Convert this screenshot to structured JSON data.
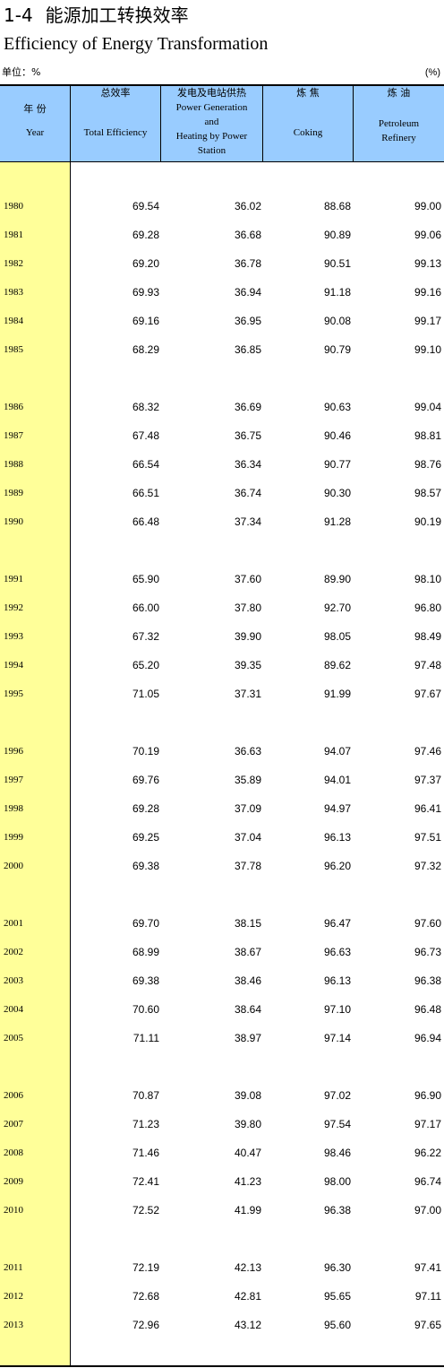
{
  "title": {
    "number": "1-4",
    "cn": "能源加工转换效率",
    "en": "Efficiency of Energy Transformation"
  },
  "unit": {
    "left": "单位：%",
    "right": "(%)"
  },
  "columns": [
    {
      "cn": "年  份",
      "en": [
        "Year"
      ]
    },
    {
      "cn": "总效率",
      "en": [
        "Total Efficiency"
      ]
    },
    {
      "cn": "发电及电站供热",
      "en": [
        "Power Generation",
        "and",
        "Heating by Power",
        "Station"
      ]
    },
    {
      "cn": "炼  焦",
      "en": [
        "Coking"
      ]
    },
    {
      "cn": "炼  油",
      "en": [
        "Petroleum",
        "Refinery"
      ]
    }
  ],
  "rows": [
    {
      "year": "1980",
      "total": "69.54",
      "power": "36.02",
      "coking": "88.68",
      "refinery": "99.00"
    },
    {
      "year": "1981",
      "total": "69.28",
      "power": "36.68",
      "coking": "90.89",
      "refinery": "99.06"
    },
    {
      "year": "1982",
      "total": "69.20",
      "power": "36.78",
      "coking": "90.51",
      "refinery": "99.13"
    },
    {
      "year": "1983",
      "total": "69.93",
      "power": "36.94",
      "coking": "91.18",
      "refinery": "99.16"
    },
    {
      "year": "1984",
      "total": "69.16",
      "power": "36.95",
      "coking": "90.08",
      "refinery": "99.17"
    },
    {
      "year": "1985",
      "total": "68.29",
      "power": "36.85",
      "coking": "90.79",
      "refinery": "99.10"
    },
    {
      "year": "1986",
      "total": "68.32",
      "power": "36.69",
      "coking": "90.63",
      "refinery": "99.04"
    },
    {
      "year": "1987",
      "total": "67.48",
      "power": "36.75",
      "coking": "90.46",
      "refinery": "98.81"
    },
    {
      "year": "1988",
      "total": "66.54",
      "power": "36.34",
      "coking": "90.77",
      "refinery": "98.76"
    },
    {
      "year": "1989",
      "total": "66.51",
      "power": "36.74",
      "coking": "90.30",
      "refinery": "98.57"
    },
    {
      "year": "1990",
      "total": "66.48",
      "power": "37.34",
      "coking": "91.28",
      "refinery": "90.19"
    },
    {
      "year": "1991",
      "total": "65.90",
      "power": "37.60",
      "coking": "89.90",
      "refinery": "98.10"
    },
    {
      "year": "1992",
      "total": "66.00",
      "power": "37.80",
      "coking": "92.70",
      "refinery": "96.80"
    },
    {
      "year": "1993",
      "total": "67.32",
      "power": "39.90",
      "coking": "98.05",
      "refinery": "98.49"
    },
    {
      "year": "1994",
      "total": "65.20",
      "power": "39.35",
      "coking": "89.62",
      "refinery": "97.48"
    },
    {
      "year": "1995",
      "total": "71.05",
      "power": "37.31",
      "coking": "91.99",
      "refinery": "97.67"
    },
    {
      "year": "1996",
      "total": "70.19",
      "power": "36.63",
      "coking": "94.07",
      "refinery": "97.46"
    },
    {
      "year": "1997",
      "total": "69.76",
      "power": "35.89",
      "coking": "94.01",
      "refinery": "97.37"
    },
    {
      "year": "1998",
      "total": "69.28",
      "power": "37.09",
      "coking": "94.97",
      "refinery": "96.41"
    },
    {
      "year": "1999",
      "total": "69.25",
      "power": "37.04",
      "coking": "96.13",
      "refinery": "97.51"
    },
    {
      "year": "2000",
      "total": "69.38",
      "power": "37.78",
      "coking": "96.20",
      "refinery": "97.32"
    },
    {
      "year": "2001",
      "total": "69.70",
      "power": "38.15",
      "coking": "96.47",
      "refinery": "97.60"
    },
    {
      "year": "2002",
      "total": "68.99",
      "power": "38.67",
      "coking": "96.63",
      "refinery": "96.73"
    },
    {
      "year": "2003",
      "total": "69.38",
      "power": "38.46",
      "coking": "96.13",
      "refinery": "96.38"
    },
    {
      "year": "2004",
      "total": "70.60",
      "power": "38.64",
      "coking": "97.10",
      "refinery": "96.48"
    },
    {
      "year": "2005",
      "total": "71.11",
      "power": "38.97",
      "coking": "97.14",
      "refinery": "96.94"
    },
    {
      "year": "2006",
      "total": "70.87",
      "power": "39.08",
      "coking": "97.02",
      "refinery": "96.90"
    },
    {
      "year": "2007",
      "total": "71.23",
      "power": "39.80",
      "coking": "97.54",
      "refinery": "97.17"
    },
    {
      "year": "2008",
      "total": "71.46",
      "power": "40.47",
      "coking": "98.46",
      "refinery": "96.22"
    },
    {
      "year": "2009",
      "total": "72.41",
      "power": "41.23",
      "coking": "98.00",
      "refinery": "96.74"
    },
    {
      "year": "2010",
      "total": "72.52",
      "power": "41.99",
      "coking": "96.38",
      "refinery": "97.00"
    },
    {
      "year": "2011",
      "total": "72.19",
      "power": "42.13",
      "coking": "96.30",
      "refinery": "97.41"
    },
    {
      "year": "2012",
      "total": "72.68",
      "power": "42.81",
      "coking": "95.65",
      "refinery": "97.11"
    },
    {
      "year": "2013",
      "total": "72.96",
      "power": "43.12",
      "coking": "95.60",
      "refinery": "97.65"
    }
  ],
  "colors": {
    "header_bg": "#99ccff",
    "year_col_bg": "#ffff99",
    "rule": "#000000"
  }
}
